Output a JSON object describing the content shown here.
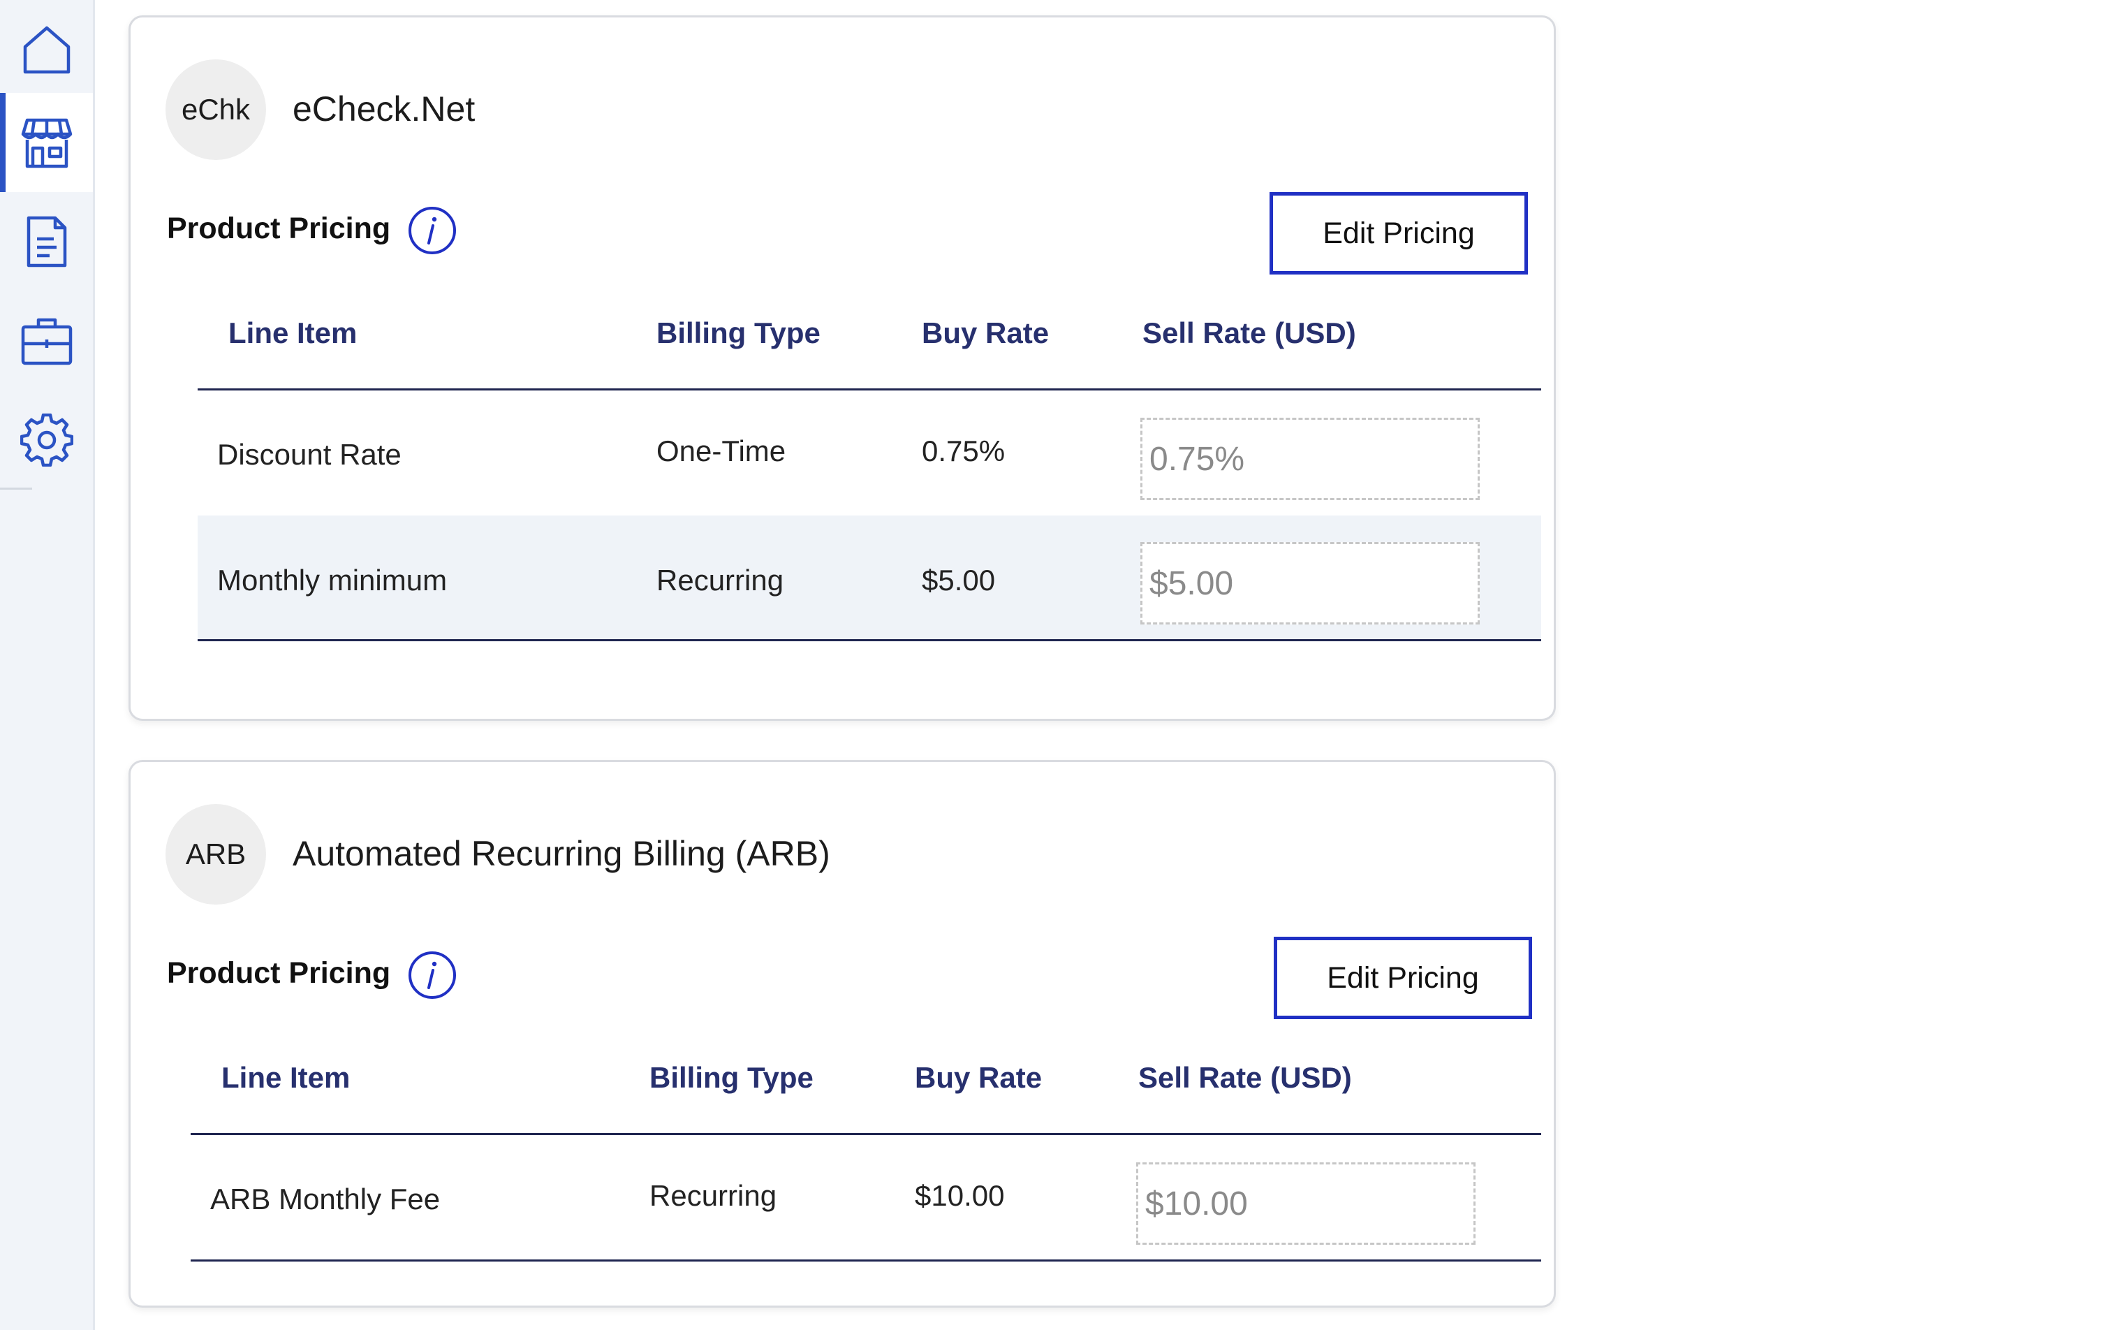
{
  "sidebar": {
    "items": [
      {
        "name": "home-icon",
        "active": false
      },
      {
        "name": "store-icon",
        "active": true
      },
      {
        "name": "document-icon",
        "active": false
      },
      {
        "name": "briefcase-icon",
        "active": false
      },
      {
        "name": "gear-icon",
        "active": false
      }
    ],
    "accent_color": "#2b53c4"
  },
  "products": [
    {
      "abbr": "eChk",
      "name": "eCheck.Net",
      "section_title": "Product Pricing",
      "edit_button_label": "Edit Pricing",
      "columns": [
        "Line Item",
        "Billing Type",
        "Buy Rate",
        "Sell Rate (USD)"
      ],
      "rows": [
        {
          "line_item": "Discount Rate",
          "billing_type": "One-Time",
          "buy_rate": "0.75%",
          "sell_rate_placeholder": "0.75%"
        },
        {
          "line_item": "Monthly minimum",
          "billing_type": "Recurring",
          "buy_rate": "$5.00",
          "sell_rate_placeholder": "$5.00"
        }
      ]
    },
    {
      "abbr": "ARB",
      "name": "Automated Recurring Billing (ARB)",
      "section_title": "Product Pricing",
      "edit_button_label": "Edit Pricing",
      "columns": [
        "Line Item",
        "Billing Type",
        "Buy Rate",
        "Sell Rate (USD)"
      ],
      "rows": [
        {
          "line_item": "ARB Monthly Fee",
          "billing_type": "Recurring",
          "buy_rate": "$10.00",
          "sell_rate_placeholder": "$10.00"
        }
      ]
    }
  ],
  "colors": {
    "button_border": "#2030c4",
    "header_text": "#27306e",
    "info_icon": "#2030c4",
    "row_highlight": "#eff3f8"
  }
}
